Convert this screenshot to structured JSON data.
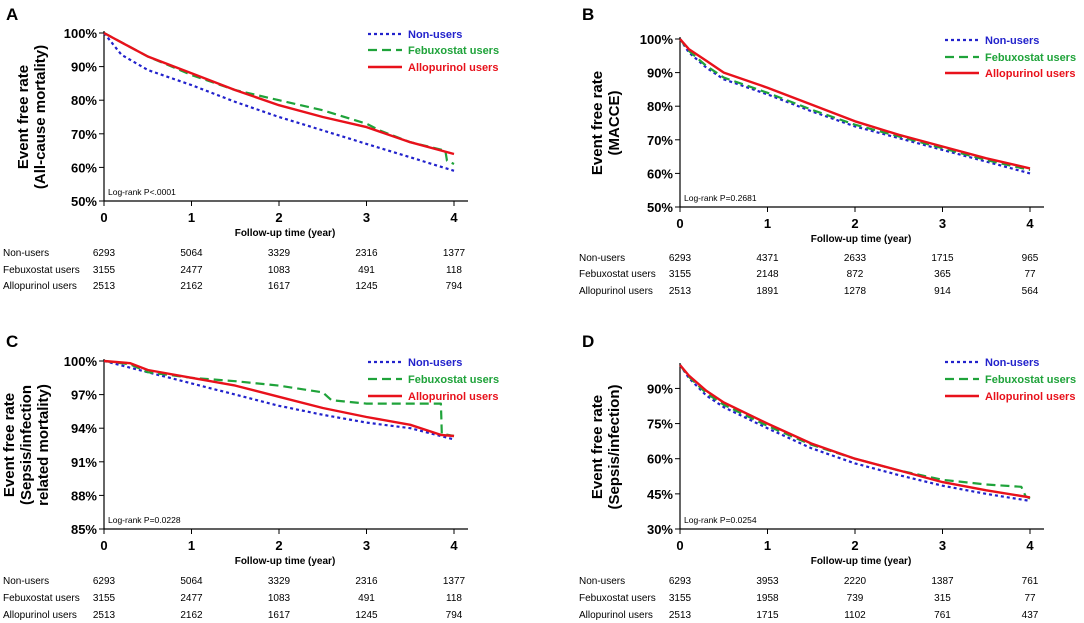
{
  "colors": {
    "non_users": "#2222cc",
    "febuxostat": "#1fa33a",
    "allopurinol": "#e8111b",
    "axis": "#000000"
  },
  "chart_data": [
    {
      "type": "line",
      "panel": "A",
      "ylabel_lines": [
        "Event free rate",
        "(All-cause mortality)"
      ],
      "xlabel": "Follow-up time (year)",
      "xlim": [
        0,
        4
      ],
      "ylim": [
        50,
        100
      ],
      "x_ticks": [
        "0",
        "1",
        "2",
        "3",
        "4"
      ],
      "y_ticks": [
        "50%",
        "60%",
        "70%",
        "80%",
        "90%",
        "100%"
      ],
      "y_tick_values": [
        50,
        60,
        70,
        80,
        90,
        100
      ],
      "annotation": "Log-rank P<.0001",
      "legend": [
        "Non-users",
        "Febuxostat users",
        "Allopurinol users"
      ],
      "series": [
        {
          "name": "Non-users",
          "x": [
            0,
            0.2,
            0.5,
            1,
            1.5,
            2,
            2.5,
            3,
            3.5,
            4
          ],
          "y": [
            100,
            93.5,
            89,
            84.5,
            79.5,
            75,
            71,
            67,
            63,
            59
          ]
        },
        {
          "name": "Febuxostat users",
          "x": [
            0,
            0.5,
            1,
            1.5,
            2,
            2.5,
            3,
            3.15,
            3.5,
            3.9,
            3.92,
            4
          ],
          "y": [
            100,
            93,
            87.5,
            83,
            80,
            77,
            73,
            71,
            67.5,
            65,
            62,
            61
          ]
        },
        {
          "name": "Allopurinol users",
          "x": [
            0,
            0.25,
            0.5,
            1,
            1.5,
            2,
            2.5,
            3,
            3.5,
            4
          ],
          "y": [
            100,
            96.5,
            93,
            88,
            83,
            78.5,
            75,
            72,
            67.5,
            64
          ]
        }
      ],
      "risk_table": {
        "rows": [
          {
            "label": "Non-users",
            "values": [
              "6293",
              "5064",
              "3329",
              "2316",
              "1377"
            ]
          },
          {
            "label": "Febuxostat users",
            "values": [
              "3155",
              "2477",
              "1083",
              "491",
              "118"
            ]
          },
          {
            "label": "Allopurinol users",
            "values": [
              "2513",
              "2162",
              "1617",
              "1245",
              "794"
            ]
          }
        ]
      }
    },
    {
      "type": "line",
      "panel": "B",
      "ylabel_lines": [
        "Event free rate",
        "(MACCE)"
      ],
      "xlabel": "Follow-up time (year)",
      "xlim": [
        0,
        4
      ],
      "ylim": [
        50,
        100
      ],
      "x_ticks": [
        "0",
        "1",
        "2",
        "3",
        "4"
      ],
      "y_ticks": [
        "50%",
        "60%",
        "70%",
        "80%",
        "90%",
        "100%"
      ],
      "y_tick_values": [
        50,
        60,
        70,
        80,
        90,
        100
      ],
      "annotation": "Log-rank P=0.2681",
      "legend": [
        "Non-users",
        "Febuxostat users",
        "Allopurinol users"
      ],
      "series": [
        {
          "name": "Non-users",
          "x": [
            0,
            0.1,
            0.3,
            0.5,
            1,
            1.5,
            2,
            2.5,
            3,
            3.5,
            4
          ],
          "y": [
            100,
            96,
            91.5,
            88,
            83.5,
            78.5,
            74,
            70.5,
            67,
            63.5,
            60
          ]
        },
        {
          "name": "Febuxostat users",
          "x": [
            0,
            0.1,
            0.3,
            0.5,
            1,
            1.5,
            2,
            2.5,
            3,
            3.5,
            4
          ],
          "y": [
            100,
            96.5,
            92,
            88.5,
            84,
            79,
            74.5,
            71,
            67.5,
            64,
            61
          ]
        },
        {
          "name": "Allopurinol users",
          "x": [
            0,
            0.1,
            0.3,
            0.5,
            1,
            1.5,
            2,
            2.5,
            3,
            3.5,
            4
          ],
          "y": [
            100,
            97,
            93.5,
            90,
            85.5,
            80.5,
            75.5,
            71.5,
            68,
            64.5,
            61.5
          ]
        }
      ],
      "risk_table": {
        "rows": [
          {
            "label": "Non-users",
            "values": [
              "6293",
              "4371",
              "2633",
              "1715",
              "965"
            ]
          },
          {
            "label": "Febuxostat users",
            "values": [
              "3155",
              "2148",
              "872",
              "365",
              "77"
            ]
          },
          {
            "label": "Allopurinol users",
            "values": [
              "2513",
              "1891",
              "1278",
              "914",
              "564"
            ]
          }
        ]
      }
    },
    {
      "type": "line",
      "panel": "C",
      "ylabel_lines": [
        "Event free rate",
        "(Sepsis/infection",
        "related mortality)"
      ],
      "xlabel": "Follow-up time (year)",
      "xlim": [
        0,
        4
      ],
      "ylim": [
        85,
        100
      ],
      "x_ticks": [
        "0",
        "1",
        "2",
        "3",
        "4"
      ],
      "y_ticks": [
        "85%",
        "88%",
        "91%",
        "94%",
        "97%",
        "100%"
      ],
      "y_tick_values": [
        85,
        88,
        91,
        94,
        97,
        100
      ],
      "annotation": "Log-rank P=0.0228",
      "legend": [
        "Non-users",
        "Febuxostat users",
        "Allopurinol users"
      ],
      "series": [
        {
          "name": "Non-users",
          "x": [
            0,
            0.5,
            1,
            1.5,
            2,
            2.5,
            3,
            3.5,
            4
          ],
          "y": [
            100,
            99,
            98,
            97,
            96,
            95.2,
            94.5,
            94,
            93
          ]
        },
        {
          "name": "Febuxostat users",
          "x": [
            0,
            0.3,
            0.5,
            1,
            1.5,
            2,
            2.5,
            2.6,
            3,
            3.5,
            3.85,
            3.86,
            4
          ],
          "y": [
            100,
            99.7,
            99,
            98.5,
            98.2,
            97.8,
            97.2,
            96.5,
            96.2,
            96.2,
            96.2,
            93.5,
            93.3
          ]
        },
        {
          "name": "Allopurinol users",
          "x": [
            0,
            0.3,
            0.5,
            1,
            1.5,
            2,
            2.5,
            3,
            3.5,
            3.85,
            4
          ],
          "y": [
            100,
            99.8,
            99.2,
            98.5,
            97.8,
            96.8,
            95.8,
            95,
            94.3,
            93.4,
            93.3
          ]
        }
      ],
      "risk_table": {
        "rows": [
          {
            "label": "Non-users",
            "values": [
              "6293",
              "5064",
              "3329",
              "2316",
              "1377"
            ]
          },
          {
            "label": "Febuxostat users",
            "values": [
              "3155",
              "2477",
              "1083",
              "491",
              "118"
            ]
          },
          {
            "label": "Allopurinol users",
            "values": [
              "2513",
              "2162",
              "1617",
              "1245",
              "794"
            ]
          }
        ]
      }
    },
    {
      "type": "line",
      "panel": "D",
      "ylabel_lines": [
        "Event free rate",
        "(Sepsis/infection)"
      ],
      "xlabel": "Follow-up time (year)",
      "xlim": [
        0,
        4
      ],
      "ylim": [
        30,
        100
      ],
      "x_ticks": [
        "0",
        "1",
        "2",
        "3",
        "4"
      ],
      "y_ticks": [
        "30%",
        "45%",
        "60%",
        "75%",
        "90%"
      ],
      "y_tick_values": [
        30,
        45,
        60,
        75,
        90
      ],
      "annotation": "Log-rank P=0.0254",
      "legend": [
        "Non-users",
        "Febuxostat users",
        "Allopurinol users"
      ],
      "series": [
        {
          "name": "Non-users",
          "x": [
            0,
            0.1,
            0.3,
            0.5,
            1,
            1.5,
            2,
            2.5,
            3,
            3.5,
            4
          ],
          "y": [
            100,
            94.5,
            87,
            82,
            73,
            64.5,
            58,
            53,
            48.5,
            45,
            42
          ]
        },
        {
          "name": "Febuxostat users",
          "x": [
            0,
            0.1,
            0.3,
            0.5,
            1,
            1.5,
            2,
            2.5,
            3,
            3.5,
            3.9,
            3.95,
            4
          ],
          "y": [
            100,
            95,
            88,
            83,
            74,
            66,
            60,
            55,
            51,
            49,
            48,
            44,
            43
          ]
        },
        {
          "name": "Allopurinol users",
          "x": [
            0,
            0.1,
            0.3,
            0.5,
            1,
            1.5,
            2,
            2.5,
            3,
            3.5,
            4
          ],
          "y": [
            100,
            95.5,
            89,
            84,
            75,
            66.5,
            60,
            55,
            50,
            46.5,
            43.5
          ]
        }
      ],
      "risk_table": {
        "rows": [
          {
            "label": "Non-users",
            "values": [
              "6293",
              "3953",
              "2220",
              "1387",
              "761"
            ]
          },
          {
            "label": "Febuxostat users",
            "values": [
              "3155",
              "1958",
              "739",
              "315",
              "77"
            ]
          },
          {
            "label": "Allopurinol users",
            "values": [
              "2513",
              "1715",
              "1102",
              "761",
              "437"
            ]
          }
        ]
      }
    }
  ]
}
